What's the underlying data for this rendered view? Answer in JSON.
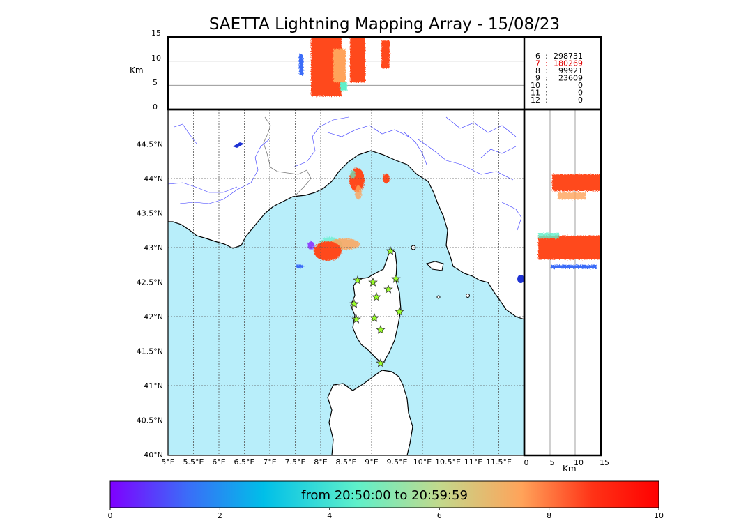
{
  "title": "SAETTA Lightning Mapping Array - 15/08/23",
  "altitude_axis": {
    "unit": "Km",
    "ticks": [
      "15",
      "10",
      "5",
      "0"
    ]
  },
  "lon_ticks": [
    "5°E",
    "5.5°E",
    "6°E",
    "6.5°E",
    "7°E",
    "7.5°E",
    "8°E",
    "8.5°E",
    "9°E",
    "9.5°E",
    "10°E",
    "10.5°E",
    "11°E",
    "11.5°E"
  ],
  "lat_ticks": [
    "44.5°N",
    "44°N",
    "43.5°N",
    "43°N",
    "42.5°N",
    "42°N",
    "41.5°N",
    "41°N",
    "40.5°N",
    "40°N"
  ],
  "side_axis": {
    "unit": "Km",
    "ticks": [
      "0",
      "5",
      "10",
      "15"
    ]
  },
  "station_counts": [
    {
      "stations": "6",
      "count": "298731",
      "highlight": false
    },
    {
      "stations": "7",
      "count": "180269",
      "highlight": true
    },
    {
      "stations": "8",
      "count": "99921",
      "highlight": false
    },
    {
      "stations": "9",
      "count": "23609",
      "highlight": false
    },
    {
      "stations": "10",
      "count": "0",
      "highlight": false
    },
    {
      "stations": "11",
      "count": "0",
      "highlight": false
    },
    {
      "stations": "12",
      "count": "0",
      "highlight": false
    }
  ],
  "colorbar": {
    "label": "from 20:50:00 to 20:59:59",
    "ticks": [
      "0",
      "2",
      "4",
      "6",
      "8",
      "10"
    ],
    "colors": [
      "#7f00ff",
      "#3b6cf8",
      "#00bfe8",
      "#5ff0ca",
      "#c2d98c",
      "#ffa35a",
      "#ff3216",
      "#ff0000"
    ]
  },
  "colors": {
    "sea": "#b8eefa",
    "land": "#ffffff",
    "river": "#3333ff",
    "station": "#9aff2a"
  }
}
